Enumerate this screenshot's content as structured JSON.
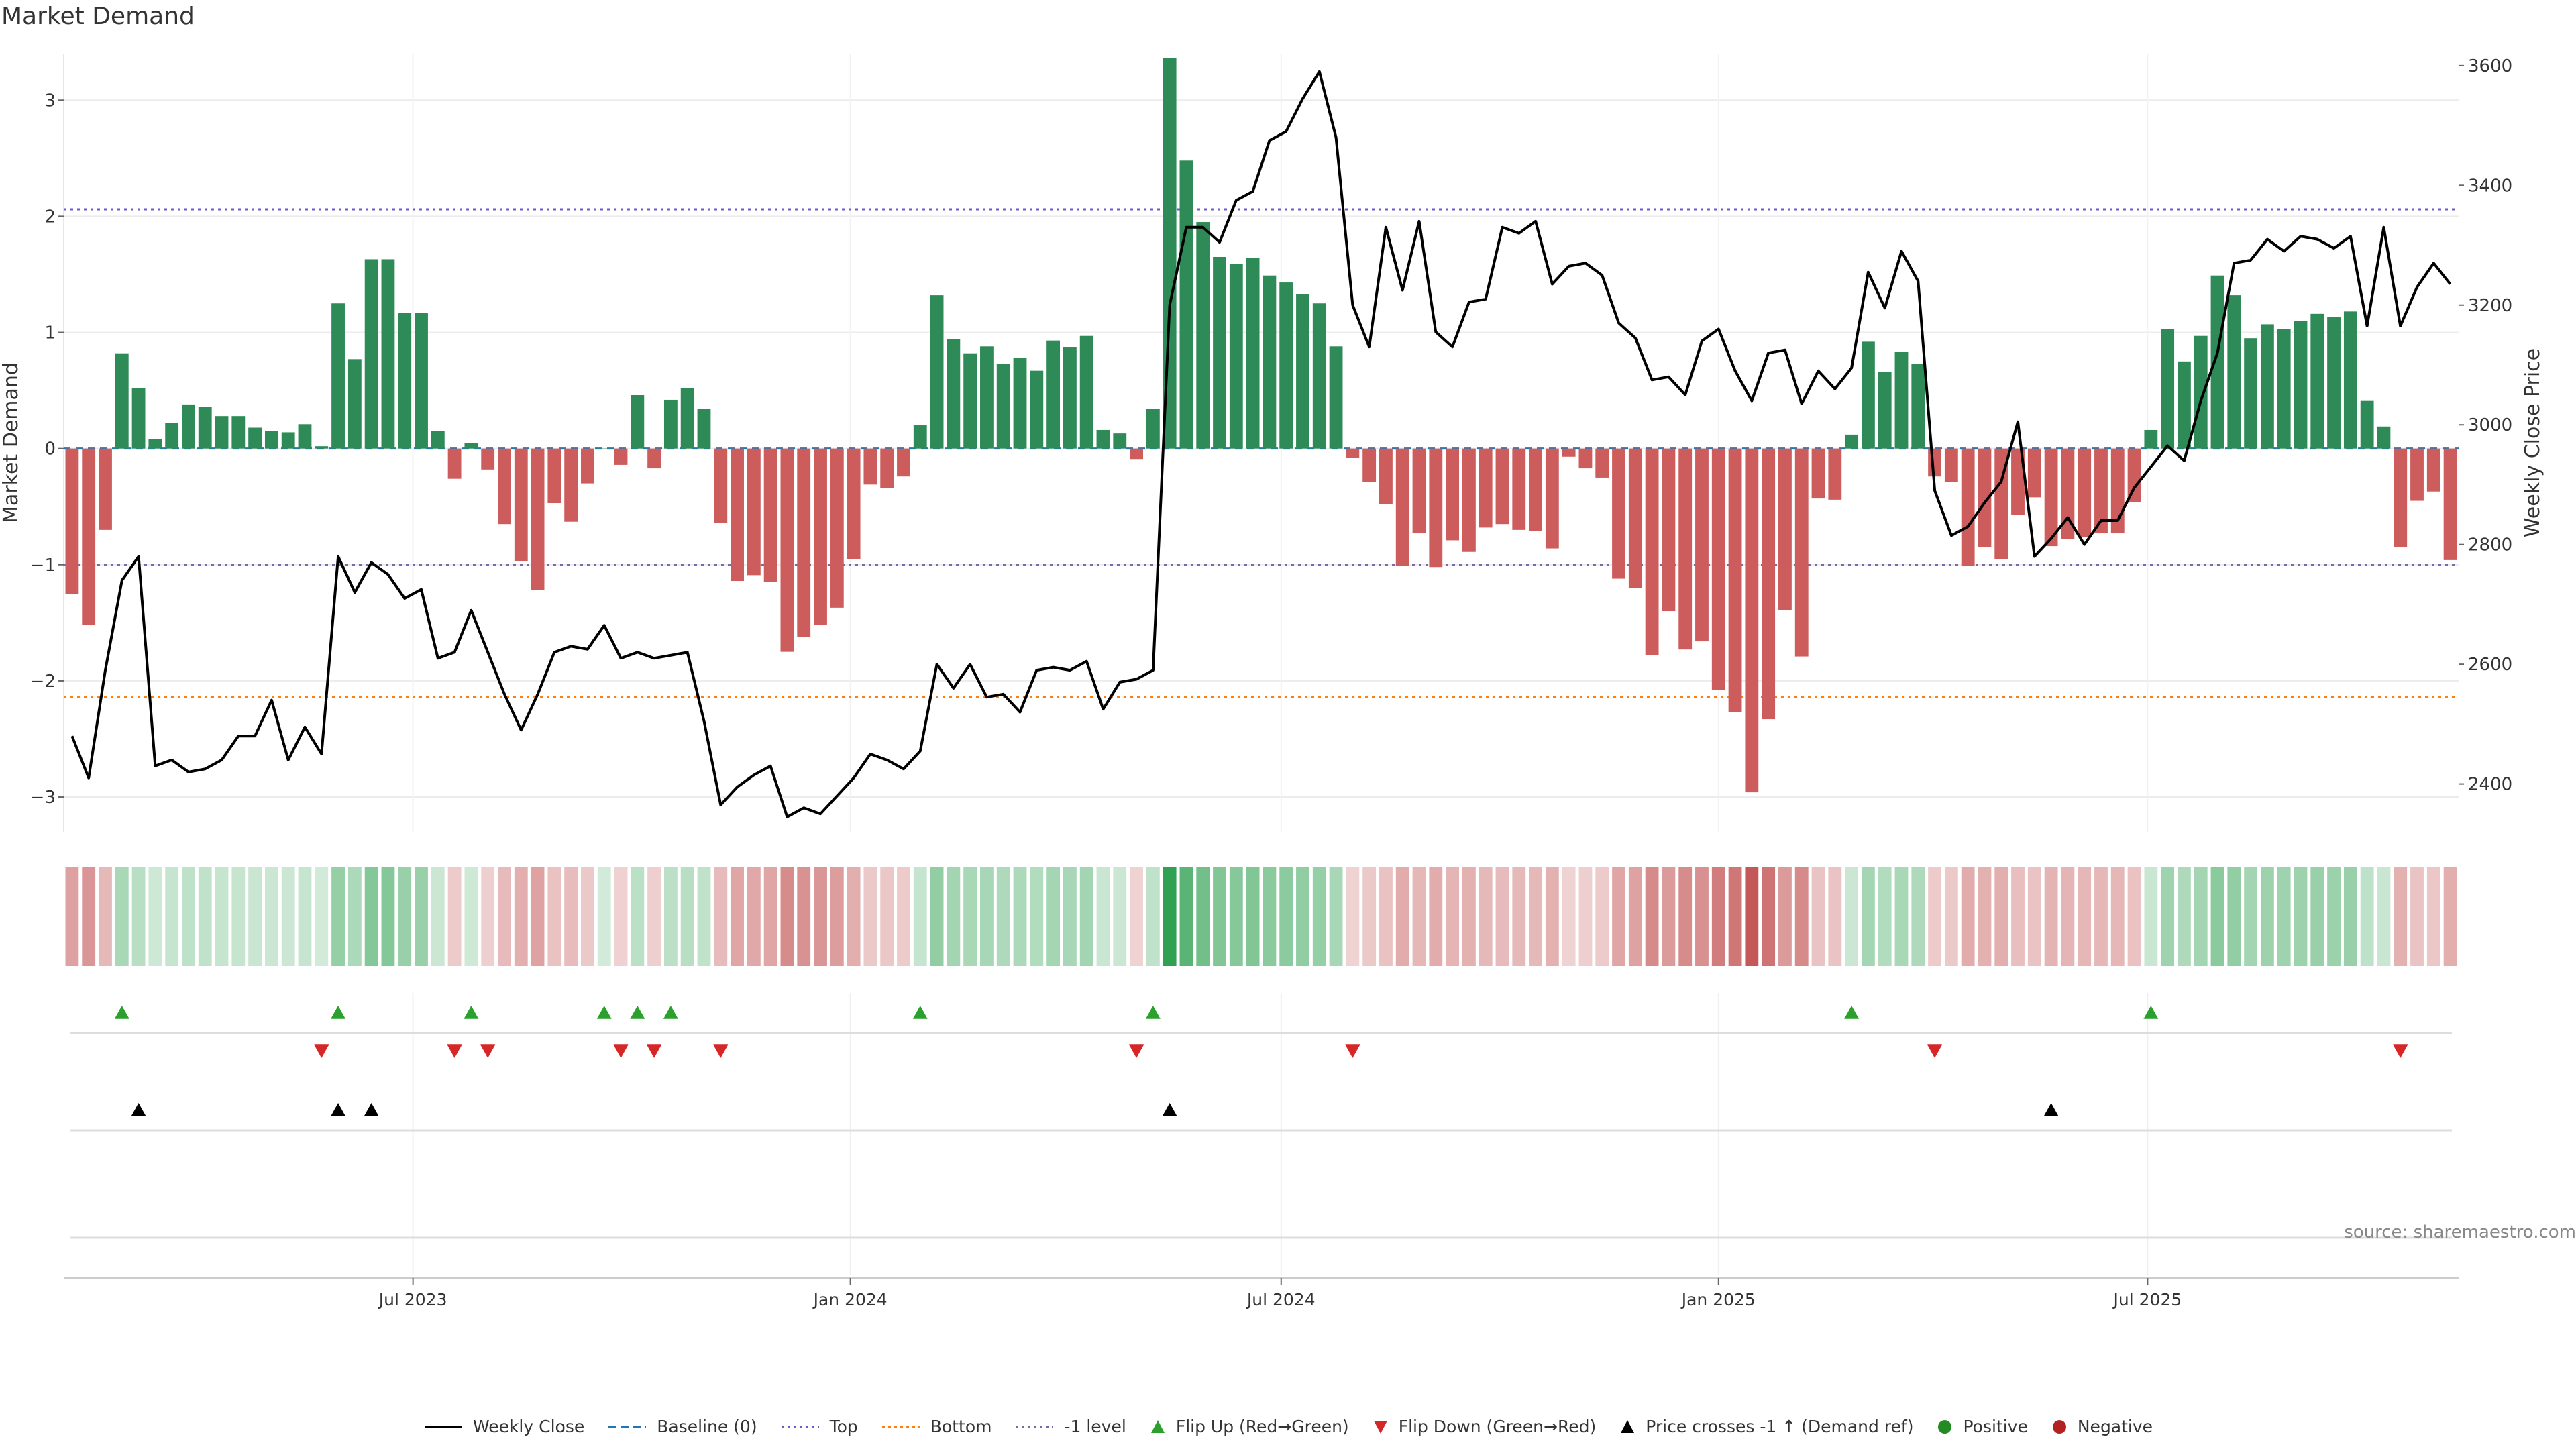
{
  "title": "Market Demand",
  "source": "source: sharemaestro.com",
  "colors": {
    "positive": "#2e8b57",
    "negative": "#cd5c5c",
    "price": "#000000",
    "baseline": "#1f77b4",
    "top": "#6a5acd",
    "bottom": "#ff7f0e",
    "minus1": "#7b68ab",
    "flip_up": "#2ca02c",
    "flip_down": "#d62728",
    "cross": "#000000",
    "pos_dot": "#228b22",
    "neg_dot": "#b22222"
  },
  "legend": [
    {
      "label": "Weekly Close",
      "kind": "solid",
      "color": "#000000"
    },
    {
      "label": "Baseline (0)",
      "kind": "dashed",
      "color": "#1f77b4"
    },
    {
      "label": "Top",
      "kind": "dotted",
      "color": "#6a5acd"
    },
    {
      "label": "Bottom",
      "kind": "dotted",
      "color": "#ff7f0e"
    },
    {
      "label": "-1 level",
      "kind": "dotted",
      "color": "#7b68ab"
    },
    {
      "label": "Flip Up (Red→Green)",
      "kind": "tri-up",
      "color": "#2ca02c"
    },
    {
      "label": "Flip Down (Green→Red)",
      "kind": "tri-down",
      "color": "#d62728"
    },
    {
      "label": "Price crosses -1 ↑ (Demand ref)",
      "kind": "tri-up",
      "color": "#000000"
    },
    {
      "label": "Positive",
      "kind": "dot",
      "color": "#228b22"
    },
    {
      "label": "Negative",
      "kind": "dot",
      "color": "#b22222"
    }
  ],
  "chart_data": {
    "type": "bar",
    "title": "Market Demand",
    "ylabel": "Market Demand",
    "y2label": "Weekly Close Price",
    "ylim": [
      -3.3,
      3.4
    ],
    "y2lim": [
      2320,
      3620
    ],
    "yticks": [
      -3,
      -2,
      -1,
      0,
      1,
      2,
      3
    ],
    "ytick_labels": [
      "−3",
      "−2",
      "−1",
      "0",
      "1",
      "2",
      "3"
    ],
    "y2ticks": [
      2400,
      2600,
      2800,
      3000,
      3200,
      3400,
      3600
    ],
    "y2tick_labels": [
      "2400",
      "2600",
      "2800",
      "3000",
      "3200",
      "3400",
      "3600"
    ],
    "top_level": 2.06,
    "bottom_level": -2.14,
    "minus1_level": -1,
    "xticks": [
      {
        "label": "Jul 2023",
        "index": 21
      },
      {
        "label": "Jan 2024",
        "index": 47.3
      },
      {
        "label": "Jul 2024",
        "index": 73.2
      },
      {
        "label": "Jan 2025",
        "index": 99.5
      },
      {
        "label": "Jul 2025",
        "index": 125.3
      }
    ],
    "demand": [
      -1.25,
      -1.52,
      -0.7,
      0.82,
      0.52,
      0.08,
      0.22,
      0.38,
      0.36,
      0.28,
      0.28,
      0.18,
      0.15,
      0.14,
      0.21,
      0.02,
      1.25,
      0.77,
      1.63,
      1.63,
      1.17,
      1.17,
      0.15,
      -0.26,
      0.05,
      -0.18,
      -0.65,
      -0.97,
      -1.22,
      -0.47,
      -0.63,
      -0.3,
      0.0,
      -0.14,
      0.46,
      -0.17,
      0.42,
      0.52,
      0.34,
      -0.64,
      -1.14,
      -1.09,
      -1.15,
      -1.75,
      -1.62,
      -1.52,
      -1.37,
      -0.95,
      -0.31,
      -0.34,
      -0.24,
      0.2,
      1.32,
      0.94,
      0.82,
      0.88,
      0.73,
      0.78,
      0.67,
      0.93,
      0.87,
      0.97,
      0.16,
      0.13,
      -0.09,
      0.34,
      3.36,
      2.48,
      1.95,
      1.65,
      1.59,
      1.64,
      1.49,
      1.43,
      1.33,
      1.25,
      0.88,
      -0.08,
      -0.29,
      -0.48,
      -1.01,
      -0.73,
      -1.02,
      -0.79,
      -0.89,
      -0.68,
      -0.65,
      -0.7,
      -0.71,
      -0.86,
      -0.07,
      -0.17,
      -0.25,
      -1.12,
      -1.2,
      -1.78,
      -1.4,
      -1.73,
      -1.66,
      -2.08,
      -2.27,
      -2.96,
      -2.33,
      -1.39,
      -1.79,
      -0.43,
      -0.44,
      0.12,
      0.92,
      0.66,
      0.83,
      0.73,
      -0.24,
      -0.29,
      -1.01,
      -0.85,
      -0.95,
      -0.57,
      -0.42,
      -0.84,
      -0.78,
      -0.76,
      -0.73,
      -0.73,
      -0.46,
      0.16,
      1.03,
      0.75,
      0.97,
      1.49,
      1.32,
      0.95,
      1.07,
      1.03,
      1.1,
      1.16,
      1.13,
      1.18,
      0.41,
      0.19,
      -0.85,
      -0.45,
      -0.37,
      -0.96
    ],
    "price": [
      2480,
      2410,
      2590,
      2740,
      2780,
      2430,
      2440,
      2420,
      2425,
      2440,
      2480,
      2480,
      2540,
      2440,
      2495,
      2450,
      2780,
      2720,
      2770,
      2750,
      2710,
      2725,
      2610,
      2620,
      2690,
      2620,
      2550,
      2490,
      2550,
      2620,
      2630,
      2625,
      2665,
      2610,
      2620,
      2610,
      2615,
      2620,
      2505,
      2365,
      2395,
      2415,
      2430,
      2345,
      2360,
      2350,
      2380,
      2410,
      2450,
      2440,
      2425,
      2455,
      2600,
      2560,
      2600,
      2545,
      2550,
      2520,
      2590,
      2595,
      2590,
      2605,
      2525,
      2570,
      2575,
      2590,
      3200,
      3330,
      3330,
      3305,
      3375,
      3390,
      3475,
      3490,
      3545,
      3590,
      3480,
      3200,
      3130,
      3330,
      3225,
      3340,
      3155,
      3130,
      3205,
      3210,
      3330,
      3320,
      3340,
      3235,
      3265,
      3270,
      3250,
      3170,
      3145,
      3075,
      3080,
      3050,
      3140,
      3160,
      3090,
      3040,
      3120,
      3125,
      3035,
      3090,
      3060,
      3095,
      3255,
      3195,
      3290,
      3240,
      2890,
      2815,
      2830,
      2870,
      2905,
      3005,
      2780,
      2810,
      2845,
      2800,
      2840,
      2840,
      2895,
      2930,
      2965,
      2940,
      3040,
      3120,
      3270,
      3275,
      3310,
      3290,
      3315,
      3310,
      3295,
      3315,
      3165,
      3330,
      3165,
      3230,
      3270,
      3235
    ],
    "flip_up_indices": [
      3,
      16,
      24,
      32,
      34,
      36,
      51,
      65,
      107,
      125
    ],
    "flip_down_indices": [
      15,
      23,
      25,
      33,
      35,
      39,
      64,
      77,
      112,
      140
    ],
    "price_cross_indices": [
      4,
      16,
      18,
      66,
      119
    ]
  }
}
